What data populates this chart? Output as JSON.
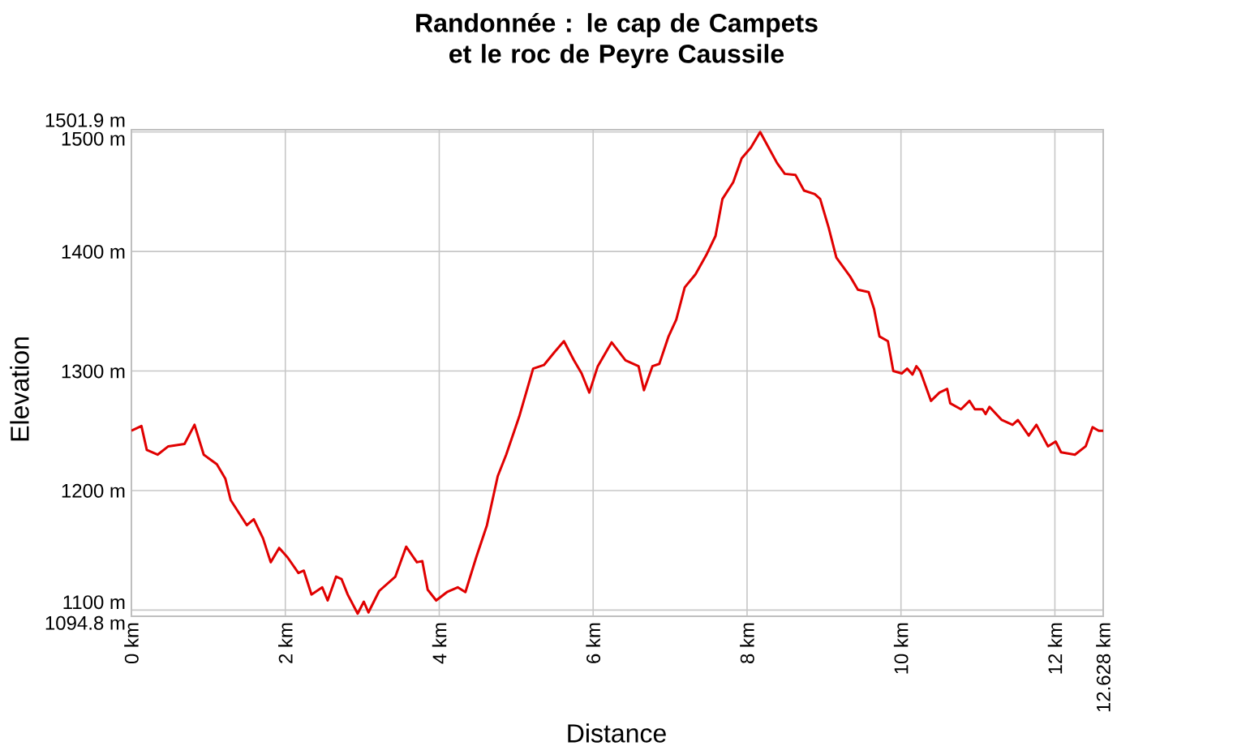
{
  "chart_data": {
    "type": "line",
    "title": "Randonnée : le cap de Campets et le roc de Peyre Caussile",
    "xlabel": "Distance",
    "ylabel": "Elevation",
    "color": "#e00000",
    "grid": true,
    "marker": "none",
    "line_style": "solid",
    "xlim": [
      0,
      12.628
    ],
    "ylim": [
      1094.8,
      1501.9
    ],
    "xticks": [
      {
        "value": 0,
        "label": "0 km"
      },
      {
        "value": 2,
        "label": "2 km"
      },
      {
        "value": 4,
        "label": "4 km"
      },
      {
        "value": 6,
        "label": "6 km"
      },
      {
        "value": 8,
        "label": "8 km"
      },
      {
        "value": 10,
        "label": "10 km"
      },
      {
        "value": 12,
        "label": "12 km"
      },
      {
        "value": 12.628,
        "label": "12.628 km"
      }
    ],
    "yticks": [
      {
        "value": 1094.8,
        "label": "1094.8 m"
      },
      {
        "value": 1100,
        "label": "1100 m"
      },
      {
        "value": 1200,
        "label": "1200 m"
      },
      {
        "value": 1300,
        "label": "1300 m"
      },
      {
        "value": 1400,
        "label": "1400 m"
      },
      {
        "value": 1500,
        "label": "1500 m"
      },
      {
        "value": 1501.9,
        "label": "1501.9 m"
      }
    ],
    "x": [
      0,
      0.13,
      0.2,
      0.34,
      0.48,
      0.69,
      0.82,
      0.94,
      1.11,
      1.22,
      1.29,
      1.5,
      1.59,
      1.71,
      1.81,
      1.92,
      2.03,
      2.17,
      2.24,
      2.34,
      2.48,
      2.55,
      2.66,
      2.73,
      2.81,
      2.94,
      3.02,
      3.08,
      3.22,
      3.43,
      3.57,
      3.71,
      3.78,
      3.85,
      3.96,
      4.1,
      4.24,
      4.34,
      4.48,
      4.62,
      4.76,
      4.87,
      5.04,
      5.22,
      5.36,
      5.5,
      5.62,
      5.75,
      5.85,
      5.95,
      6.06,
      6.24,
      6.42,
      6.59,
      6.66,
      6.77,
      6.86,
      6.98,
      7.08,
      7.19,
      7.33,
      7.47,
      7.59,
      7.68,
      7.82,
      7.93,
      8.05,
      8.17,
      8.28,
      8.39,
      8.49,
      8.63,
      8.74,
      8.88,
      8.95,
      9.06,
      9.16,
      9.34,
      9.44,
      9.58,
      9.65,
      9.72,
      9.83,
      9.9,
      10.01,
      10.08,
      10.15,
      10.2,
      10.25,
      10.39,
      10.5,
      10.6,
      10.64,
      10.78,
      10.89,
      10.96,
      11.06,
      11.1,
      11.15,
      11.31,
      11.45,
      11.52,
      11.66,
      11.76,
      11.91,
      12.01,
      12.08,
      12.26,
      12.4,
      12.49,
      12.57,
      12.628
    ],
    "values": [
      1250,
      1254,
      1234,
      1230,
      1237,
      1239,
      1255,
      1230,
      1222,
      1210,
      1192,
      1171,
      1176,
      1160,
      1140,
      1152,
      1144,
      1131,
      1133,
      1113,
      1119,
      1108,
      1128,
      1126,
      1113,
      1097,
      1107,
      1098,
      1116,
      1128,
      1153,
      1140,
      1141,
      1117,
      1108,
      1115,
      1119,
      1115,
      1144,
      1171,
      1212,
      1230,
      1262,
      1302,
      1305,
      1316,
      1325,
      1309,
      1298,
      1282,
      1304,
      1324,
      1309,
      1304,
      1284,
      1304,
      1306,
      1329,
      1343,
      1370,
      1381,
      1397,
      1413,
      1444,
      1458,
      1478,
      1487,
      1500,
      1487,
      1474,
      1465,
      1464,
      1451,
      1448,
      1444,
      1420,
      1395,
      1379,
      1368,
      1366,
      1352,
      1329,
      1325,
      1300,
      1298,
      1302,
      1297,
      1304,
      1300,
      1275,
      1282,
      1285,
      1273,
      1268,
      1275,
      1268,
      1268,
      1264,
      1270,
      1259,
      1255,
      1259,
      1246,
      1255,
      1237,
      1241,
      1232,
      1230,
      1237,
      1253,
      1250,
      1250
    ]
  }
}
